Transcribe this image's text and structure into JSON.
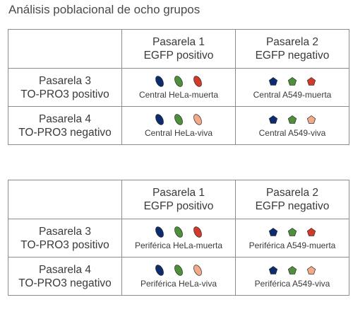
{
  "title": "Análisis poblacional de ocho grupos",
  "colors": {
    "blue": "#0b2c6e",
    "green": "#4e8f3a",
    "red": "#d23a2a",
    "peach": "#f2a98a"
  },
  "tables": [
    {
      "columns": [
        {
          "line1": "Pasarela 1",
          "line2": "EGFP positivo"
        },
        {
          "line1": "Pasarela 2",
          "line2": "EGFP negativo"
        }
      ],
      "rows": [
        {
          "line1": "Pasarela 3",
          "line2": "TO-PRO3 positivo",
          "cells": [
            {
              "shape": "ellipse",
              "fills": [
                "blue",
                "green",
                "red"
              ],
              "caption": "Central HeLa-muerta"
            },
            {
              "shape": "pentagon",
              "fills": [
                "blue",
                "green",
                "red"
              ],
              "caption": "Central A549-muerta"
            }
          ]
        },
        {
          "line1": "Pasarela 4",
          "line2": "TO-PRO3 negativo",
          "cells": [
            {
              "shape": "ellipse",
              "fills": [
                "blue",
                "green",
                "peach"
              ],
              "caption": "Central HeLa-viva"
            },
            {
              "shape": "pentagon",
              "fills": [
                "blue",
                "green",
                "peach"
              ],
              "caption": "Central A549-viva"
            }
          ]
        }
      ]
    },
    {
      "columns": [
        {
          "line1": "Pasarela 1",
          "line2": "EGFP positivo"
        },
        {
          "line1": "Pasarela 2",
          "line2": "EGFP negativo"
        }
      ],
      "rows": [
        {
          "line1": "Pasarela 3",
          "line2": "TO-PRO3 positivo",
          "cells": [
            {
              "shape": "ellipse",
              "fills": [
                "blue",
                "green",
                "red"
              ],
              "caption": "Periférica HeLa-muerta"
            },
            {
              "shape": "pentagon",
              "fills": [
                "blue",
                "green",
                "red"
              ],
              "caption": "Periférica A549-muerta"
            }
          ]
        },
        {
          "line1": "Pasarela 4",
          "line2": "TO-PRO3 negativo",
          "cells": [
            {
              "shape": "ellipse",
              "fills": [
                "blue",
                "green",
                "peach"
              ],
              "caption": "Periférica HeLa-viva"
            },
            {
              "shape": "pentagon",
              "fills": [
                "blue",
                "green",
                "peach"
              ],
              "caption": "Periférica A549-viva"
            }
          ]
        }
      ]
    }
  ]
}
